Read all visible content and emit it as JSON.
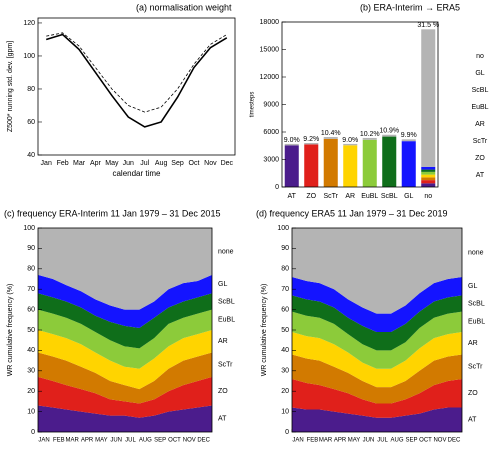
{
  "chart_data": [
    {
      "type": "line",
      "title": "(a) normalisation weight",
      "y_label": "Z500* running std. dev. [gpm]",
      "x_label": "calendar time",
      "categories": [
        "Jan",
        "Feb",
        "Mar",
        "Apr",
        "May",
        "Jun",
        "Jul",
        "Aug",
        "Sep",
        "Oct",
        "Nov",
        "Dec"
      ],
      "series": [
        {
          "color": "#000000",
          "style": "solid",
          "values": [
            110,
            113,
            104,
            90,
            76,
            63,
            57,
            60,
            75,
            93,
            105,
            111
          ]
        },
        {
          "color": "#000000",
          "style": "dashed",
          "values": [
            112,
            114,
            106,
            93,
            80,
            70,
            66,
            69,
            80,
            95,
            107,
            113
          ]
        }
      ],
      "ylim": [
        40,
        123
      ],
      "yticks": [
        40,
        60,
        80,
        100,
        120
      ]
    },
    {
      "type": "bar",
      "title": "(b) ERA-Interim → ERA5",
      "y_label": "timesteps",
      "categories": [
        "AT",
        "ZO",
        "ScTr",
        "AR",
        "EuBL",
        "ScBL",
        "GL",
        "no"
      ],
      "bar_labels": [
        "9.0%",
        "9.2%",
        "10.4%",
        "9.0%",
        "10.2%",
        "10.9%",
        "9.9%",
        "31.5 %"
      ],
      "series": [
        {
          "name": "AT",
          "color": "#4b1c8c",
          "values": [
            4550,
            0,
            0,
            0,
            0,
            0,
            0,
            400
          ]
        },
        {
          "name": "ZO",
          "color": "#e0201b",
          "values": [
            0,
            4650,
            0,
            0,
            0,
            0,
            0,
            350
          ]
        },
        {
          "name": "ScTr",
          "color": "#d27a00",
          "values": [
            0,
            0,
            5250,
            0,
            0,
            0,
            0,
            300
          ]
        },
        {
          "name": "AR",
          "color": "#ffd400",
          "values": [
            0,
            0,
            0,
            4550,
            0,
            0,
            0,
            300
          ]
        },
        {
          "name": "EuBL",
          "color": "#8ccb3a",
          "values": [
            0,
            0,
            0,
            0,
            5150,
            0,
            0,
            300
          ]
        },
        {
          "name": "ScBL",
          "color": "#0f6e1a",
          "values": [
            0,
            0,
            0,
            0,
            0,
            5500,
            0,
            250
          ]
        },
        {
          "name": "GL",
          "color": "#1414ff",
          "values": [
            0,
            0,
            0,
            0,
            0,
            0,
            5000,
            300
          ]
        },
        {
          "name": "no",
          "color": "#b4b4b4",
          "values": [
            150,
            150,
            200,
            150,
            200,
            200,
            200,
            15000
          ]
        }
      ],
      "ylim": [
        0,
        18000
      ],
      "yticks": [
        0,
        3000,
        6000,
        9000,
        12000,
        15000,
        18000
      ]
    },
    {
      "type": "area",
      "title": "(c) frequency ERA-Interim 11 Jan 1979 – 31 Dec 2015",
      "y_label": "WR cumulative frequency (%)",
      "x": [
        1,
        32,
        60,
        91,
        121,
        152,
        182,
        213,
        244,
        274,
        305,
        335,
        365
      ],
      "xlim": [
        1,
        365
      ],
      "xticks": [
        {
          "value": 1,
          "label": "JAN"
        },
        {
          "value": 32,
          "label": "FEB"
        },
        {
          "value": 60,
          "label": "MAR"
        },
        {
          "value": 91,
          "label": "APR"
        },
        {
          "value": 121,
          "label": "MAY"
        },
        {
          "value": 152,
          "label": "JUN"
        },
        {
          "value": 182,
          "label": "JUL"
        },
        {
          "value": 213,
          "label": "AUG"
        },
        {
          "value": 244,
          "label": "SEP"
        },
        {
          "value": 274,
          "label": "OCT"
        },
        {
          "value": 305,
          "label": "NOV"
        },
        {
          "value": 335,
          "label": "DEC"
        }
      ],
      "series": [
        {
          "name": "AT",
          "color": "#4b1c8c",
          "values": [
            13,
            12,
            11,
            10,
            9,
            8,
            8,
            7,
            8,
            10,
            11,
            12,
            13
          ]
        },
        {
          "name": "ZO",
          "color": "#e0201b",
          "values": [
            14,
            13,
            12,
            11,
            10,
            8,
            7,
            7,
            8,
            10,
            12,
            13,
            14
          ]
        },
        {
          "name": "ScTr",
          "color": "#d27a00",
          "values": [
            12,
            12,
            12,
            11,
            10,
            9,
            8,
            7,
            9,
            11,
            12,
            12,
            12
          ]
        },
        {
          "name": "AR",
          "color": "#ffd400",
          "values": [
            11,
            11,
            11,
            11,
            10,
            10,
            9,
            10,
            11,
            11,
            11,
            11,
            11
          ]
        },
        {
          "name": "EuBL",
          "color": "#8ccb3a",
          "values": [
            10,
            10,
            10,
            10,
            10,
            10,
            10,
            10,
            10,
            11,
            10,
            10,
            10
          ]
        },
        {
          "name": "ScBL",
          "color": "#0f6e1a",
          "values": [
            8,
            8,
            8,
            8,
            8,
            9,
            10,
            10,
            10,
            8,
            8,
            8,
            8
          ]
        },
        {
          "name": "GL",
          "color": "#1414ff",
          "values": [
            9,
            9,
            8,
            8,
            8,
            8,
            8,
            9,
            8,
            9,
            9,
            8,
            9
          ]
        },
        {
          "name": "none",
          "color": "#b4b4b4",
          "values": [
            23,
            25,
            28,
            31,
            35,
            38,
            40,
            40,
            36,
            30,
            27,
            26,
            23
          ]
        }
      ],
      "ylim": [
        0,
        100
      ],
      "yticks": [
        0,
        10,
        20,
        30,
        40,
        50,
        60,
        70,
        80,
        90,
        100
      ]
    },
    {
      "type": "area",
      "title": "(d) frequency ERA5 11 Jan 1979 – 31 Dec 2019",
      "y_label": "WR cumulative frequency (%)",
      "x": [
        1,
        32,
        60,
        91,
        121,
        152,
        182,
        213,
        244,
        274,
        305,
        335,
        365
      ],
      "xlim": [
        1,
        365
      ],
      "xticks": [
        {
          "value": 1,
          "label": "JAN"
        },
        {
          "value": 32,
          "label": "FEB"
        },
        {
          "value": 60,
          "label": "MAR"
        },
        {
          "value": 91,
          "label": "APR"
        },
        {
          "value": 121,
          "label": "MAY"
        },
        {
          "value": 152,
          "label": "JUN"
        },
        {
          "value": 182,
          "label": "JUL"
        },
        {
          "value": 213,
          "label": "AUG"
        },
        {
          "value": 244,
          "label": "SEP"
        },
        {
          "value": 274,
          "label": "OCT"
        },
        {
          "value": 305,
          "label": "NOV"
        },
        {
          "value": 335,
          "label": "DEC"
        }
      ],
      "series": [
        {
          "name": "AT",
          "color": "#4b1c8c",
          "values": [
            12,
            11,
            11,
            10,
            9,
            8,
            7,
            7,
            8,
            9,
            11,
            12,
            12
          ]
        },
        {
          "name": "ZO",
          "color": "#e0201b",
          "values": [
            14,
            13,
            12,
            11,
            10,
            8,
            7,
            7,
            8,
            10,
            12,
            13,
            14
          ]
        },
        {
          "name": "ScTr",
          "color": "#d27a00",
          "values": [
            12,
            12,
            12,
            11,
            10,
            9,
            8,
            8,
            9,
            11,
            12,
            12,
            12
          ]
        },
        {
          "name": "AR",
          "color": "#ffd400",
          "values": [
            11,
            11,
            11,
            11,
            10,
            9,
            9,
            9,
            10,
            11,
            11,
            11,
            11
          ]
        },
        {
          "name": "EuBL",
          "color": "#8ccb3a",
          "values": [
            10,
            10,
            10,
            10,
            9,
            9,
            9,
            9,
            9,
            10,
            10,
            10,
            10
          ]
        },
        {
          "name": "ScBL",
          "color": "#0f6e1a",
          "values": [
            8,
            8,
            8,
            8,
            8,
            9,
            9,
            9,
            9,
            8,
            8,
            8,
            8
          ]
        },
        {
          "name": "GL",
          "color": "#1414ff",
          "values": [
            9,
            9,
            9,
            9,
            9,
            9,
            9,
            9,
            9,
            9,
            9,
            9,
            9
          ]
        },
        {
          "name": "none",
          "color": "#b4b4b4",
          "values": [
            24,
            26,
            27,
            30,
            35,
            39,
            42,
            42,
            38,
            32,
            27,
            25,
            24
          ]
        }
      ],
      "ylim": [
        0,
        100
      ],
      "yticks": [
        0,
        10,
        20,
        30,
        40,
        50,
        60,
        70,
        80,
        90,
        100
      ]
    }
  ]
}
